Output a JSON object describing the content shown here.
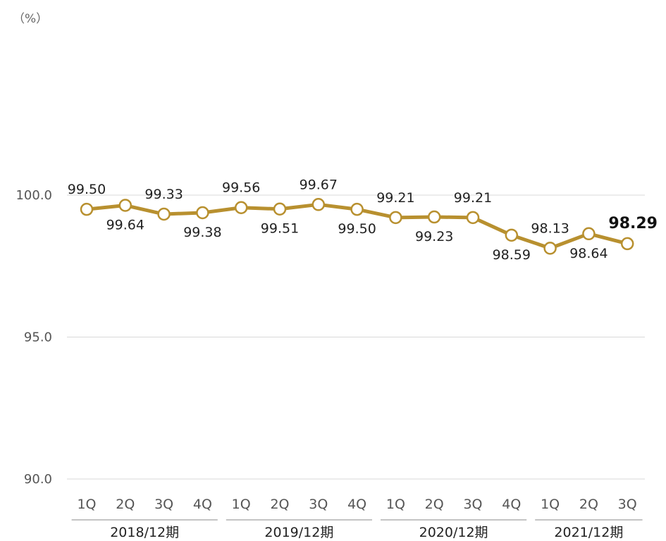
{
  "unit_label": "（%）",
  "chart_data": {
    "type": "line",
    "categories": [
      "1Q",
      "2Q",
      "3Q",
      "4Q",
      "1Q",
      "2Q",
      "3Q",
      "4Q",
      "1Q",
      "2Q",
      "3Q",
      "4Q",
      "1Q",
      "2Q",
      "3Q"
    ],
    "groups": [
      {
        "label": "2018/12期",
        "count": 4
      },
      {
        "label": "2019/12期",
        "count": 4
      },
      {
        "label": "2020/12期",
        "count": 4
      },
      {
        "label": "2021/12期",
        "count": 3
      }
    ],
    "values": [
      99.5,
      99.64,
      99.33,
      99.38,
      99.56,
      99.51,
      99.67,
      99.5,
      99.21,
      99.23,
      99.21,
      98.59,
      98.13,
      98.64,
      98.29
    ],
    "data_labels": [
      "99.50",
      "99.64",
      "99.33",
      "99.38",
      "99.56",
      "99.51",
      "99.67",
      "99.50",
      "99.21",
      "99.23",
      "99.21",
      "98.59",
      "98.13",
      "98.64",
      "98.29"
    ],
    "label_positions": [
      "above",
      "below",
      "above",
      "below",
      "above",
      "below",
      "above",
      "below",
      "above",
      "below",
      "above",
      "below",
      "above",
      "below",
      "above"
    ],
    "highlight_last": true,
    "y_ticks": [
      "100.0",
      "95.0",
      "90.0"
    ],
    "ylim": [
      90,
      100
    ],
    "grid": true,
    "colors": {
      "line": "#b8902f",
      "marker_fill": "#ffffff",
      "grid": "#d9d9d9",
      "text": "#222222",
      "axis_text": "#555555"
    }
  }
}
